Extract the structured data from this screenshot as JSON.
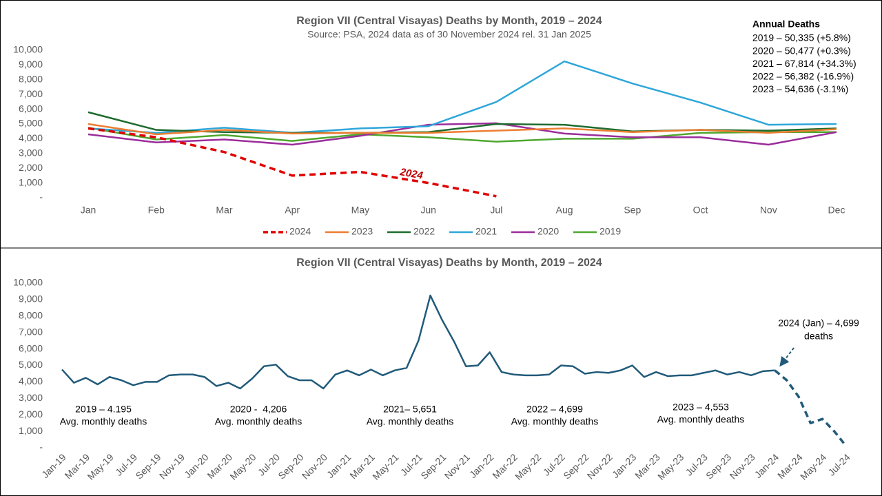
{
  "chart_data": [
    {
      "type": "line",
      "title": "Region VII (Central Visayas) Deaths by Month, 2019 – 2024",
      "subtitle": "Source: PSA, 2024 data as of 30 November 2024 rel. 31 Jan 2025",
      "categories": [
        "Jan",
        "Feb",
        "Mar",
        "Apr",
        "May",
        "Jun",
        "Jul",
        "Aug",
        "Sep",
        "Oct",
        "Nov",
        "Dec"
      ],
      "series": [
        {
          "name": "2024",
          "color": "#e00000",
          "dash": true,
          "values": [
            4700,
            4100,
            3100,
            1500,
            1750,
            1000,
            100,
            null,
            null,
            null,
            null,
            null
          ]
        },
        {
          "name": "2023",
          "color": "#ed7d31",
          "values": [
            5000,
            4300,
            4600,
            4350,
            4400,
            4400,
            4550,
            4700,
            4450,
            4600,
            4400,
            4650
          ]
        },
        {
          "name": "2022",
          "color": "#1e6b2e",
          "values": [
            5800,
            4600,
            4450,
            4400,
            4400,
            4450,
            5000,
            4950,
            4500,
            4600,
            4550,
            4700
          ]
        },
        {
          "name": "2021",
          "color": "#2ea6d9",
          "values": [
            4700,
            4400,
            4750,
            4400,
            4700,
            4850,
            6500,
            9250,
            7750,
            6450,
            4950,
            5000
          ]
        },
        {
          "name": "2020",
          "color": "#9b2d9b",
          "values": [
            4300,
            3750,
            3950,
            3600,
            4200,
            4950,
            5050,
            4350,
            4100,
            4100,
            3600,
            4450
          ]
        },
        {
          "name": "2019",
          "color": "#4ea72e",
          "values": [
            4750,
            3950,
            4250,
            3850,
            4300,
            4100,
            3800,
            4000,
            4000,
            4400,
            4450,
            4450
          ]
        }
      ],
      "ylim": [
        0,
        10000
      ],
      "yticks": [
        {
          "value": 0,
          "label": "-"
        },
        {
          "value": 1000,
          "label": "1,000"
        },
        {
          "value": 2000,
          "label": "2,000"
        },
        {
          "value": 3000,
          "label": "3,000"
        },
        {
          "value": 4000,
          "label": "4,000"
        },
        {
          "value": 5000,
          "label": "5,000"
        },
        {
          "value": 6000,
          "label": "6,000"
        },
        {
          "value": 7000,
          "label": "7,000"
        },
        {
          "value": 8000,
          "label": "8,000"
        },
        {
          "value": 9000,
          "label": "9,000"
        },
        {
          "value": 10000,
          "label": "10,000"
        }
      ],
      "grid": false,
      "legend": "bottom",
      "series_label": "2024",
      "annual_deaths": {
        "title": "Annual Deaths",
        "lines": [
          "2019 – 50,335 (+5.8%)",
          "2020 – 50,477 (+0.3%)",
          "2021 – 67,814 (+34.3%)",
          "2022 – 56,382 (-16.9%)",
          "2023 – 54,636 (-3.1%)"
        ]
      }
    },
    {
      "type": "line",
      "title": "Region VII (Central Visayas) Deaths by Month, 2019 – 2024",
      "categories": [
        "Jan-19",
        null,
        "Mar-19",
        null,
        "May-19",
        null,
        "Jul-19",
        null,
        "Sep-19",
        null,
        "Nov-19",
        null,
        "Jan-20",
        null,
        "Mar-20",
        null,
        "May-20",
        null,
        "Jul-20",
        null,
        "Sep-20",
        null,
        "Nov-20",
        null,
        "Jan-21",
        null,
        "Mar-21",
        null,
        "May-21",
        null,
        "Jul-21",
        null,
        "Sep-21",
        null,
        "Nov-21",
        null,
        "Jan-22",
        null,
        "Mar-22",
        null,
        "May-22",
        null,
        "Jul-22",
        null,
        "Sep-22",
        null,
        "Nov-22",
        null,
        "Jan-23",
        null,
        "Mar-23",
        null,
        "May-23",
        null,
        "Jul-23",
        null,
        "Sep-23",
        null,
        "Nov-23",
        null,
        "Jan-24",
        null,
        "Mar-24",
        null,
        "May-24",
        null,
        "Jul-24"
      ],
      "series": [
        {
          "color": "#215a7a",
          "values": [
            4750,
            3950,
            4250,
            3850,
            4300,
            4100,
            3800,
            4000,
            4000,
            4400,
            4450,
            4450,
            4300,
            3750,
            3950,
            3600,
            4200,
            4950,
            5050,
            4350,
            4100,
            4100,
            3600,
            4450,
            4700,
            4400,
            4750,
            4400,
            4700,
            4850,
            6500,
            9250,
            7750,
            6450,
            4950,
            5000,
            5800,
            4600,
            4450,
            4400,
            4400,
            4450,
            5000,
            4950,
            4500,
            4600,
            4550,
            4700,
            5000,
            4300,
            4600,
            4350,
            4400,
            4400,
            4550,
            4700,
            4450,
            4600,
            4400,
            4650,
            4700,
            null,
            null,
            null,
            null,
            null,
            null
          ]
        },
        {
          "color": "#215a7a",
          "dash": true,
          "values": [
            null,
            null,
            null,
            null,
            null,
            null,
            null,
            null,
            null,
            null,
            null,
            null,
            null,
            null,
            null,
            null,
            null,
            null,
            null,
            null,
            null,
            null,
            null,
            null,
            null,
            null,
            null,
            null,
            null,
            null,
            null,
            null,
            null,
            null,
            null,
            null,
            null,
            null,
            null,
            null,
            null,
            null,
            null,
            null,
            null,
            null,
            null,
            null,
            null,
            null,
            null,
            null,
            null,
            null,
            null,
            null,
            null,
            null,
            null,
            null,
            4700,
            4100,
            3100,
            1500,
            1750,
            1000,
            100
          ]
        }
      ],
      "ylim": [
        0,
        10000
      ],
      "yticks": [
        {
          "value": 0,
          "label": "-"
        },
        {
          "value": 1000,
          "label": "1,000"
        },
        {
          "value": 2000,
          "label": "2,000"
        },
        {
          "value": 3000,
          "label": "3,000"
        },
        {
          "value": 4000,
          "label": "4,000"
        },
        {
          "value": 5000,
          "label": "5,000"
        },
        {
          "value": 6000,
          "label": "6,000"
        },
        {
          "value": 7000,
          "label": "7,000"
        },
        {
          "value": 8000,
          "label": "8,000"
        },
        {
          "value": 9000,
          "label": "9,000"
        },
        {
          "value": 10000,
          "label": "10,000"
        }
      ],
      "grid": false,
      "annotations": [
        {
          "text": "2019 – 4.195",
          "sub": "Avg. monthly deaths"
        },
        {
          "text": "2020 -  4,206",
          "sub": "Avg. monthly deaths"
        },
        {
          "text": "2021– 5,651",
          "sub": "Avg. monthly deaths"
        },
        {
          "text": "2022 – 4,699",
          "sub": "Avg. monthly deaths"
        },
        {
          "text": "2023 – 4,553",
          "sub": "Avg. monthly deaths"
        }
      ],
      "callout": [
        "2024 (Jan) – 4,699",
        "deaths"
      ]
    }
  ]
}
